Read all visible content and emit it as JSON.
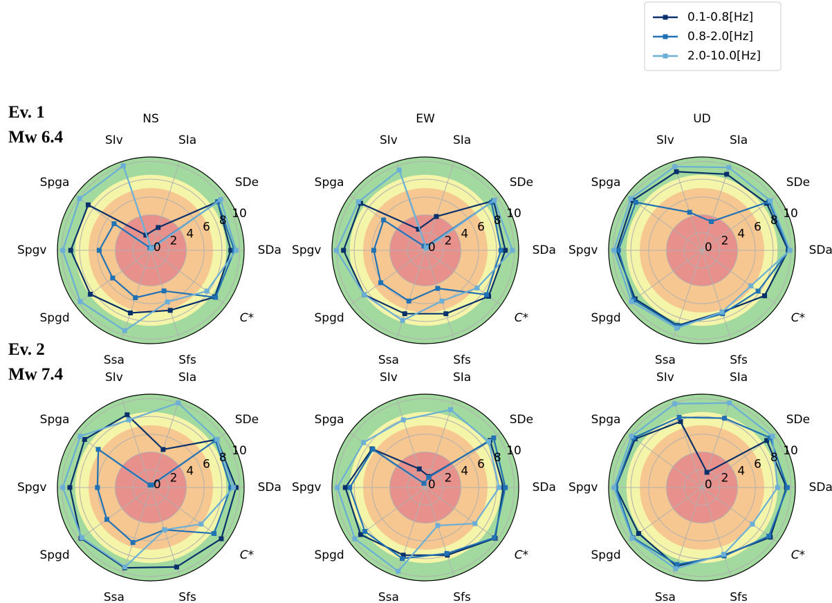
{
  "chart_data": [
    {
      "type": "radar",
      "title": "NS",
      "row_label": [
        "Ev. 1",
        "Mw 6.4"
      ],
      "categories": [
        "SDa",
        "SDe",
        "SIa",
        "SIv",
        "Spga",
        "Spgv",
        "Spgd",
        "Ssa",
        "Sfs",
        "C*"
      ],
      "rlim": [
        0,
        10.5
      ],
      "rticks": [
        0,
        2,
        4,
        6,
        8,
        10
      ],
      "bands": [
        {
          "from": 0,
          "to": 4,
          "color": "#e58a8c"
        },
        {
          "from": 4,
          "to": 7,
          "color": "#f6c28d"
        },
        {
          "from": 7,
          "to": 8.5,
          "color": "#fdf7a8"
        },
        {
          "from": 8.5,
          "to": 10.5,
          "color": "#98d594"
        }
      ],
      "series": [
        {
          "name": "0.1-0.8[Hz]",
          "color": "#08306b",
          "values": [
            9.0,
            9.3,
            2.7,
            1.8,
            8.7,
            9.0,
            8.4,
            7.4,
            7.1,
            8.9
          ]
        },
        {
          "name": "0.8-2.0[Hz]",
          "color": "#2171b5",
          "values": [
            9.4,
            9.3,
            0.3,
            0.3,
            5.1,
            5.8,
            5.3,
            5.6,
            4.8,
            9.0
          ]
        },
        {
          "name": "2.0-10.0[Hz]",
          "color": "#6baed6",
          "values": [
            9.6,
            9.7,
            0.2,
            10,
            9.9,
            9.9,
            9.8,
            9.5,
            6.1,
            7.8
          ]
        }
      ]
    },
    {
      "type": "radar",
      "title": "EW",
      "categories": [
        "SDa",
        "SDe",
        "SIa",
        "SIv",
        "Spga",
        "Spgv",
        "Spgd",
        "Ssa",
        "Sfs",
        "C*"
      ],
      "rlim": [
        0,
        10.5
      ],
      "rticks": [
        0,
        2,
        4,
        6,
        8,
        10
      ],
      "bands": [
        {
          "from": 0,
          "to": 4,
          "color": "#e58a8c"
        },
        {
          "from": 4,
          "to": 7,
          "color": "#f6c28d"
        },
        {
          "from": 7,
          "to": 8.5,
          "color": "#fdf7a8"
        },
        {
          "from": 8.5,
          "to": 10.5,
          "color": "#98d594"
        }
      ],
      "series": [
        {
          "name": "0.1-0.8[Hz]",
          "color": "#08306b",
          "values": [
            9.0,
            9.5,
            4.0,
            2.5,
            9.0,
            9.2,
            8.5,
            7.5,
            7.5,
            8.8
          ]
        },
        {
          "name": "0.8-2.0[Hz]",
          "color": "#2171b5",
          "values": [
            8.5,
            9.2,
            0.5,
            0.5,
            5.8,
            5.8,
            6.2,
            6.0,
            4.5,
            8.5
          ]
        },
        {
          "name": "2.0-10.0[Hz]",
          "color": "#6baed6",
          "values": [
            9.8,
            9.6,
            0.3,
            9.5,
            9.3,
            10,
            8.5,
            8.3,
            6.0,
            7.2
          ]
        }
      ]
    },
    {
      "type": "radar",
      "title": "UD",
      "categories": [
        "SDa",
        "SDe",
        "SIa",
        "SIv",
        "Spga",
        "Spgv",
        "Spgd",
        "Ssa",
        "Sfs",
        "C*"
      ],
      "rlim": [
        0,
        10.5
      ],
      "rticks": [
        0,
        2,
        4,
        6,
        8,
        10
      ],
      "bands": [
        {
          "from": 0,
          "to": 4,
          "color": "#e58a8c"
        },
        {
          "from": 4,
          "to": 7,
          "color": "#f6c28d"
        },
        {
          "from": 7,
          "to": 8.5,
          "color": "#fdf7a8"
        },
        {
          "from": 8.5,
          "to": 10.5,
          "color": "#98d594"
        }
      ],
      "series": [
        {
          "name": "0.1-0.8[Hz]",
          "color": "#08306b",
          "values": [
            9.7,
            9.0,
            9.0,
            9.3,
            9.6,
            9.6,
            9.3,
            8.9,
            7.3,
            8.7
          ]
        },
        {
          "name": "0.8-2.0[Hz]",
          "color": "#2171b5",
          "values": [
            9.8,
            9.3,
            3.4,
            4.5,
            9.2,
            9.4,
            9.5,
            9.0,
            7.5,
            7.8
          ]
        },
        {
          "name": "2.0-10.0[Hz]",
          "color": "#6baed6",
          "values": [
            9.9,
            9.5,
            9.8,
            9.9,
            9.9,
            9.9,
            9.8,
            9.2,
            7.3,
            6.8
          ]
        }
      ]
    },
    {
      "type": "radar",
      "row_label": [
        "Ev. 2",
        "Mw 7.4"
      ],
      "categories": [
        "SDa",
        "SDe",
        "SIa",
        "SIv",
        "Spga",
        "Spgv",
        "Spgd",
        "Ssa",
        "Sfs",
        "C*"
      ],
      "rlim": [
        0,
        10.5
      ],
      "rticks": [
        0,
        2,
        4,
        6,
        8,
        10
      ],
      "bands": [
        {
          "from": 0,
          "to": 4,
          "color": "#e58a8c"
        },
        {
          "from": 4,
          "to": 7,
          "color": "#f6c28d"
        },
        {
          "from": 7,
          "to": 8.5,
          "color": "#fdf7a8"
        },
        {
          "from": 8.5,
          "to": 10.5,
          "color": "#98d594"
        }
      ],
      "series": [
        {
          "name": "0.1-0.8[Hz]",
          "color": "#08306b",
          "values": [
            9.6,
            9.2,
            4.5,
            8.6,
            9.2,
            9.1,
            9.7,
            9.5,
            9.4,
            9.8
          ]
        },
        {
          "name": "0.8-2.0[Hz]",
          "color": "#2171b5",
          "values": [
            9.0,
            9.0,
            0.3,
            0.3,
            7.3,
            6.0,
            6.1,
            6.5,
            5.0,
            8.8
          ]
        },
        {
          "name": "2.0-10.0[Hz]",
          "color": "#6baed6",
          "values": [
            9.3,
            9.2,
            10,
            8.0,
            9.8,
            9.9,
            9.6,
            9.4,
            5.0,
            7.0
          ]
        }
      ]
    },
    {
      "type": "radar",
      "categories": [
        "SDa",
        "SDe",
        "SIa",
        "SIv",
        "Spga",
        "Spgv",
        "Spgd",
        "Ssa",
        "Sfs",
        "C*"
      ],
      "rlim": [
        0,
        10.5
      ],
      "rticks": [
        0,
        2,
        4,
        6,
        8,
        10
      ],
      "bands": [
        {
          "from": 0,
          "to": 4,
          "color": "#e58a8c"
        },
        {
          "from": 4,
          "to": 7,
          "color": "#f6c28d"
        },
        {
          "from": 7,
          "to": 8.5,
          "color": "#fdf7a8"
        },
        {
          "from": 8.5,
          "to": 10.5,
          "color": "#98d594"
        }
      ],
      "series": [
        {
          "name": "0.1-0.8[Hz]",
          "color": "#08306b",
          "values": [
            8.8,
            9.0,
            1.3,
            2.2,
            7.4,
            9.0,
            9.0,
            8.0,
            8.0,
            9.7
          ]
        },
        {
          "name": "0.8-2.0[Hz]",
          "color": "#2171b5",
          "values": [
            9.0,
            9.5,
            1.2,
            0.5,
            7.3,
            8.5,
            8.4,
            8.4,
            7.8,
            9.6
          ]
        },
        {
          "name": "2.0-10.0[Hz]",
          "color": "#6baed6",
          "values": [
            8.3,
            8.8,
            9.2,
            8.0,
            8.6,
            9.9,
            9.8,
            9.9,
            4.5,
            6.9
          ]
        }
      ]
    },
    {
      "type": "radar",
      "categories": [
        "SDa",
        "SDe",
        "SIa",
        "SIv",
        "Spga",
        "Spgv",
        "Spgd",
        "Ssa",
        "Sfs",
        "C*"
      ],
      "rlim": [
        0,
        10.5
      ],
      "rticks": [
        0,
        2,
        4,
        6,
        8,
        10
      ],
      "bands": [
        {
          "from": 0,
          "to": 4,
          "color": "#e58a8c"
        },
        {
          "from": 4,
          "to": 7,
          "color": "#f6c28d"
        },
        {
          "from": 7,
          "to": 8.5,
          "color": "#fdf7a8"
        },
        {
          "from": 8.5,
          "to": 10.5,
          "color": "#98d594"
        }
      ],
      "series": [
        {
          "name": "0.1-0.8[Hz]",
          "color": "#08306b",
          "values": [
            9.5,
            9.0,
            1.8,
            7.8,
            9.3,
            9.7,
            8.8,
            9.3,
            8.0,
            9.5
          ]
        },
        {
          "name": "0.8-2.0[Hz]",
          "color": "#2171b5",
          "values": [
            9.6,
            9.5,
            8.2,
            8.3,
            9.5,
            9.7,
            9.6,
            9.1,
            8.1,
            9.3
          ]
        },
        {
          "name": "2.0-10.0[Hz]",
          "color": "#6baed6",
          "values": [
            8.5,
            9.8,
            10,
            9.9,
            9.8,
            9.9,
            9.7,
            9.6,
            7.9,
            7.0
          ]
        }
      ]
    }
  ]
}
